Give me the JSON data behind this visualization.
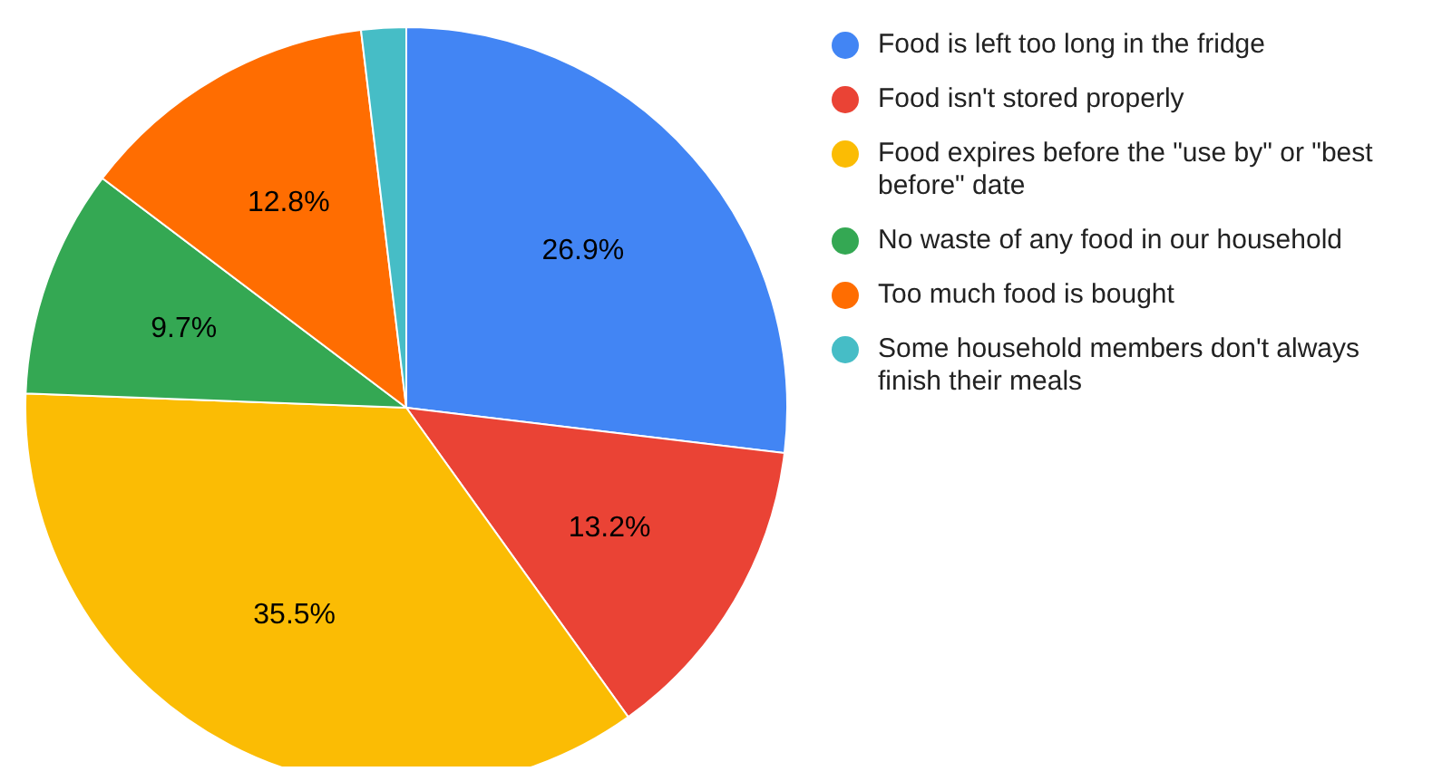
{
  "chart_data": {
    "type": "pie",
    "categories": [
      "Food is left too long in the fridge",
      "Food isn't stored properly",
      "Food expires before the \"use by\" or \"best before\" date",
      "No waste of any food in our household",
      "Too much food is bought",
      "Some household members don't always finish their meals"
    ],
    "values": [
      26.9,
      13.2,
      35.5,
      9.7,
      12.8,
      1.9
    ],
    "value_labels": [
      "26.9%",
      "13.2%",
      "35.5%",
      "9.7%",
      "12.8%",
      null
    ],
    "colors": [
      "#4285f4",
      "#ea4335",
      "#fbbc04",
      "#34a853",
      "#ff6d01",
      "#46bdc6"
    ],
    "legend": "right"
  }
}
